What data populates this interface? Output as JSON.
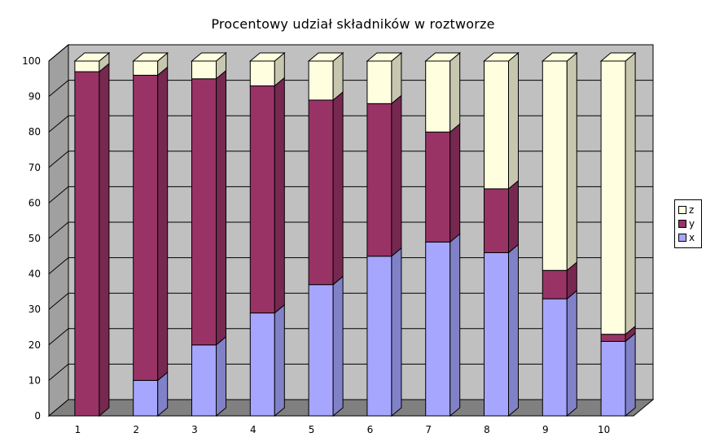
{
  "chart_data": {
    "type": "bar",
    "stacked": true,
    "percent": true,
    "three_d": true,
    "title": "Procentowy udział składników w roztworze",
    "xlabel": "",
    "ylabel": "",
    "ylim": [
      0,
      100
    ],
    "yticks": [
      0,
      10,
      20,
      30,
      40,
      50,
      60,
      70,
      80,
      90,
      100
    ],
    "categories": [
      "1",
      "2",
      "3",
      "4",
      "5",
      "6",
      "7",
      "8",
      "9",
      "10"
    ],
    "series": [
      {
        "name": "x",
        "color": "#a6a6ff",
        "values": [
          0,
          10,
          20,
          29,
          37,
          45,
          49,
          46,
          33,
          21
        ]
      },
      {
        "name": "y",
        "color": "#993366",
        "values": [
          97,
          86,
          75,
          64,
          52,
          43,
          31,
          18,
          8,
          2
        ]
      },
      {
        "name": "z",
        "color": "#ffffe0",
        "values": [
          3,
          4,
          5,
          7,
          11,
          12,
          20,
          36,
          59,
          77
        ]
      }
    ],
    "legend": {
      "position": "right",
      "order": [
        "z",
        "y",
        "x"
      ]
    },
    "grid": true,
    "wall_color": "#c0c0c0",
    "floor_color": "#808080"
  }
}
